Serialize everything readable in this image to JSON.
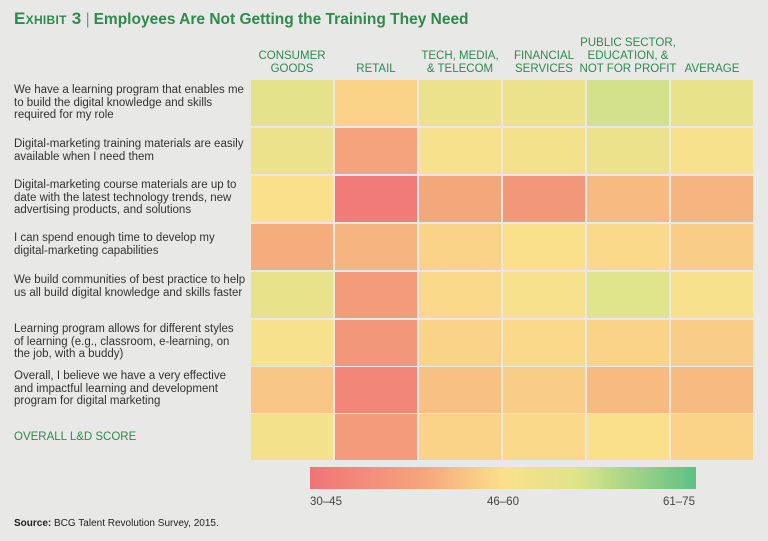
{
  "title": {
    "exhibit": "Exhibit 3",
    "separator": "|",
    "text": "Employees Are Not Getting the Training They Need"
  },
  "chart_data": {
    "type": "heatmap",
    "columns": [
      [
        "CONSUMER",
        "GOODS"
      ],
      [
        "RETAIL"
      ],
      [
        "TECH, MEDIA,",
        "& TELECOM"
      ],
      [
        "FINANCIAL",
        "SERVICES"
      ],
      [
        "PUBLIC SECTOR,",
        "EDUCATION, &",
        "NOT FOR PROFIT"
      ],
      [
        "AVERAGE"
      ]
    ],
    "rows": [
      {
        "label": "We have a learning program that enables me to build the digital knowledge and skills required for my role",
        "values": [
          58,
          50,
          56,
          56,
          61,
          57
        ]
      },
      {
        "label": "Digital-marketing training materials are easily available when I need them",
        "values": [
          56,
          42,
          53,
          54,
          56,
          53
        ]
      },
      {
        "label": "Digital-marketing course materials are up to date with the latest technology trends, new advertising products, and solutions",
        "values": [
          52,
          32,
          43,
          39,
          46,
          45
        ]
      },
      {
        "label": "I can spend enough time to develop my digital-marketing capabilities",
        "values": [
          44,
          45,
          50,
          52,
          51,
          49
        ]
      },
      {
        "label": "We build communities of best practice to help us all build digital knowledge and skills faster",
        "values": [
          57,
          40,
          51,
          53,
          59,
          53
        ]
      },
      {
        "label": "Learning program allows for different styles of learning (e.g., classroom, e-learning, on the job, with a buddy)",
        "values": [
          53,
          39,
          50,
          51,
          50,
          49
        ]
      },
      {
        "label": "Overall, I believe we have a very effective and impactful learning and development program for digital marketing",
        "values": [
          48,
          35,
          47,
          49,
          46,
          46
        ]
      },
      {
        "label": "OVERALL L&D SCORE",
        "values": [
          54,
          40,
          50,
          51,
          52,
          50
        ]
      }
    ],
    "scale": {
      "min": 30,
      "max": 75,
      "labels": [
        "30–45",
        "46–60",
        "61–75"
      ],
      "colors": [
        "#f07377",
        "#f5a77c",
        "#fbe08c",
        "#dce48a",
        "#5cc183"
      ]
    }
  },
  "source": {
    "prefix": "Source:",
    "text": "BCG Talent Revolution Survey, 2015."
  }
}
